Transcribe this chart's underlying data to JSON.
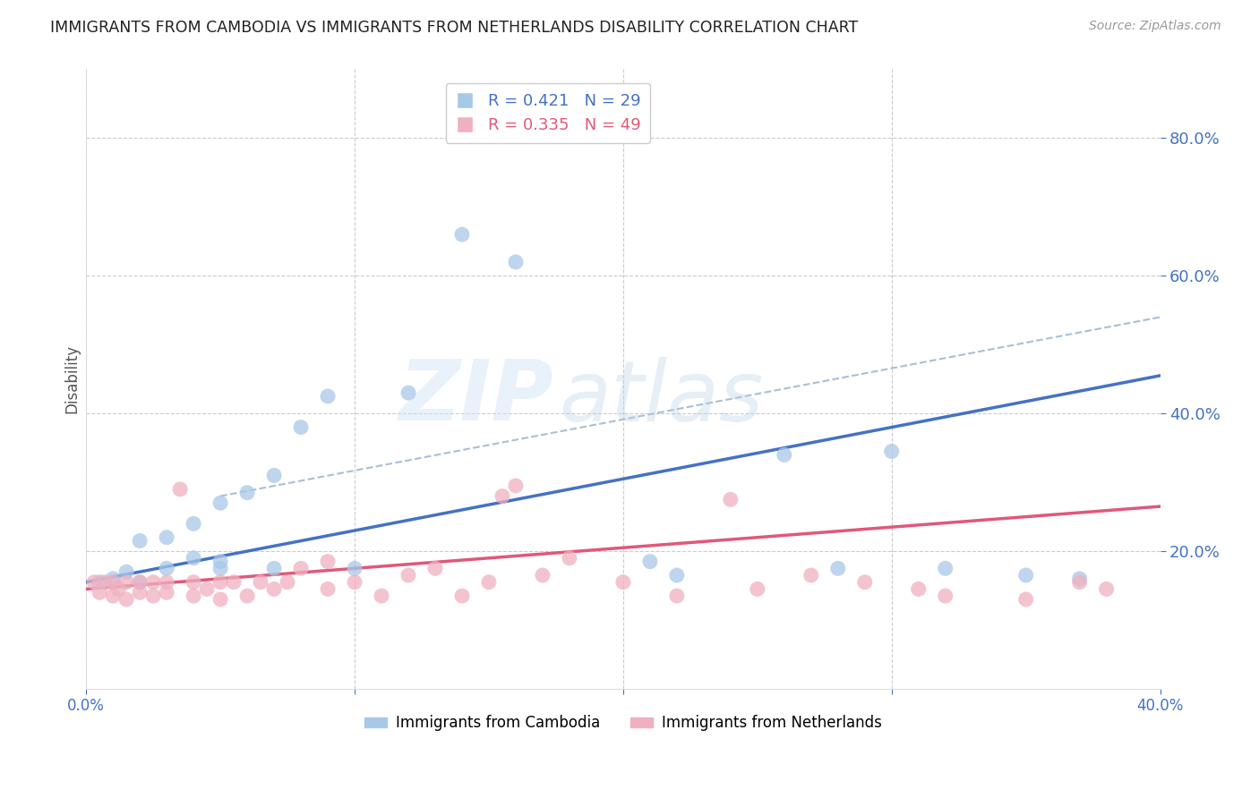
{
  "title": "IMMIGRANTS FROM CAMBODIA VS IMMIGRANTS FROM NETHERLANDS DISABILITY CORRELATION CHART",
  "source": "Source: ZipAtlas.com",
  "xlabel_left": "Immigrants from Cambodia",
  "xlabel_right": "Immigrants from Netherlands",
  "ylabel": "Disability",
  "xlim": [
    0.0,
    0.4
  ],
  "ylim": [
    0.0,
    0.9
  ],
  "right_yticks": [
    0.2,
    0.4,
    0.6,
    0.8
  ],
  "xticks": [
    0.0,
    0.1,
    0.2,
    0.3,
    0.4
  ],
  "grid_color": "#cccccc",
  "watermark_zip": "ZIP",
  "watermark_atlas": "atlas",
  "blue_color": "#a8c8e8",
  "pink_color": "#f0b0c0",
  "blue_line_color": "#4472c4",
  "pink_line_color": "#e05878",
  "ref_line_color": "#a0b8d0",
  "legend_R_blue": "R = 0.421",
  "legend_N_blue": "N = 29",
  "legend_R_pink": "R = 0.335",
  "legend_N_pink": "N = 49",
  "blue_scatter_x": [
    0.005,
    0.01,
    0.015,
    0.02,
    0.02,
    0.03,
    0.03,
    0.04,
    0.04,
    0.05,
    0.05,
    0.05,
    0.06,
    0.07,
    0.07,
    0.08,
    0.09,
    0.1,
    0.12,
    0.14,
    0.16,
    0.21,
    0.22,
    0.26,
    0.28,
    0.3,
    0.32,
    0.35,
    0.37
  ],
  "blue_scatter_y": [
    0.155,
    0.16,
    0.17,
    0.155,
    0.215,
    0.175,
    0.22,
    0.19,
    0.24,
    0.175,
    0.185,
    0.27,
    0.285,
    0.175,
    0.31,
    0.38,
    0.425,
    0.175,
    0.43,
    0.66,
    0.62,
    0.185,
    0.165,
    0.34,
    0.175,
    0.345,
    0.175,
    0.165,
    0.16
  ],
  "pink_scatter_x": [
    0.003,
    0.005,
    0.007,
    0.01,
    0.01,
    0.012,
    0.015,
    0.015,
    0.02,
    0.02,
    0.025,
    0.025,
    0.03,
    0.03,
    0.035,
    0.04,
    0.04,
    0.045,
    0.05,
    0.05,
    0.055,
    0.06,
    0.065,
    0.07,
    0.075,
    0.08,
    0.09,
    0.09,
    0.1,
    0.11,
    0.12,
    0.13,
    0.14,
    0.15,
    0.155,
    0.16,
    0.17,
    0.18,
    0.2,
    0.22,
    0.24,
    0.25,
    0.27,
    0.29,
    0.31,
    0.32,
    0.35,
    0.37,
    0.38
  ],
  "pink_scatter_y": [
    0.155,
    0.14,
    0.155,
    0.135,
    0.155,
    0.145,
    0.13,
    0.155,
    0.14,
    0.155,
    0.135,
    0.155,
    0.14,
    0.155,
    0.29,
    0.135,
    0.155,
    0.145,
    0.13,
    0.155,
    0.155,
    0.135,
    0.155,
    0.145,
    0.155,
    0.175,
    0.185,
    0.145,
    0.155,
    0.135,
    0.165,
    0.175,
    0.135,
    0.155,
    0.28,
    0.295,
    0.165,
    0.19,
    0.155,
    0.135,
    0.275,
    0.145,
    0.165,
    0.155,
    0.145,
    0.135,
    0.13,
    0.155,
    0.145
  ],
  "blue_line_x": [
    0.0,
    0.4
  ],
  "blue_line_y": [
    0.155,
    0.455
  ],
  "pink_line_x": [
    0.0,
    0.4
  ],
  "pink_line_y": [
    0.145,
    0.265
  ],
  "ref_line_x": [
    0.05,
    0.4
  ],
  "ref_line_y": [
    0.28,
    0.54
  ],
  "right_axis_color": "#4472c4",
  "right_tick_label_color": "#4472c4",
  "x_tick_label_color": "#4472c4"
}
